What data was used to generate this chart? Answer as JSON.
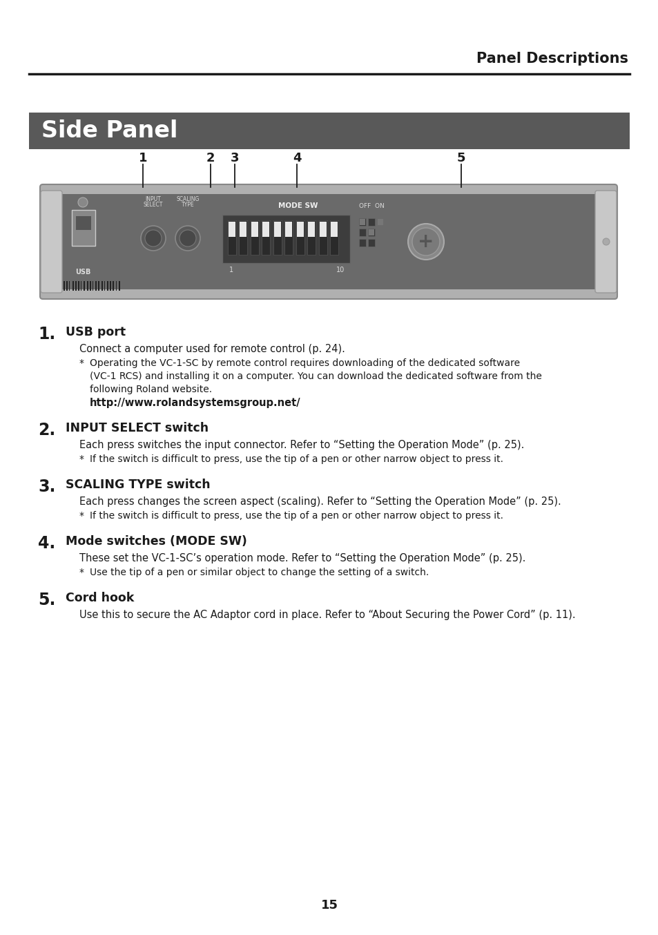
{
  "page_title": "Panel Descriptions",
  "section_title": "Side Panel",
  "section_bg": "#595959",
  "section_title_color": "#ffffff",
  "header_line_color": "#1a1a1a",
  "page_number": "15",
  "items": [
    {
      "number": "1.",
      "heading": "USB port",
      "body": "Connect a computer used for remote control (p. 24).",
      "note_lines": [
        "Operating the VC-1-SC by remote control requires downloading of the dedicated software",
        "(VC-1 RCS) and installing it on a computer. You can download the dedicated software from the",
        "following Roland website."
      ],
      "link": "http://www.rolandsystemsgroup.net/"
    },
    {
      "number": "2.",
      "heading": "INPUT SELECT switch",
      "body": "Each press switches the input connector. Refer to “Setting the Operation Mode” (p. 25).",
      "note_lines": [
        "If the switch is difficult to press, use the tip of a pen or other narrow object to press it."
      ],
      "link": null
    },
    {
      "number": "3.",
      "heading": "SCALING TYPE switch",
      "body": "Each press changes the screen aspect (scaling). Refer to “Setting the Operation Mode” (p. 25).",
      "note_lines": [
        "If the switch is difficult to press, use the tip of a pen or other narrow object to press it."
      ],
      "link": null
    },
    {
      "number": "4.",
      "heading": "Mode switches (MODE SW)",
      "body": "These set the VC-1-SC’s operation mode. Refer to “Setting the Operation Mode” (p. 25).",
      "note_lines": [
        "Use the tip of a pen or similar object to change the setting of a switch."
      ],
      "link": null
    },
    {
      "number": "5.",
      "heading": "Cord hook",
      "body": "Use this to secure the AC Adaptor cord in place. Refer to “About Securing the Power Cord” (p. 11).",
      "note_lines": [],
      "link": null
    }
  ],
  "background_color": "#ffffff",
  "text_color": "#1a1a1a",
  "panel_bg": "#6a6a6a",
  "panel_edge": "#aaaaaa",
  "panel_dark": "#4a4a4a"
}
